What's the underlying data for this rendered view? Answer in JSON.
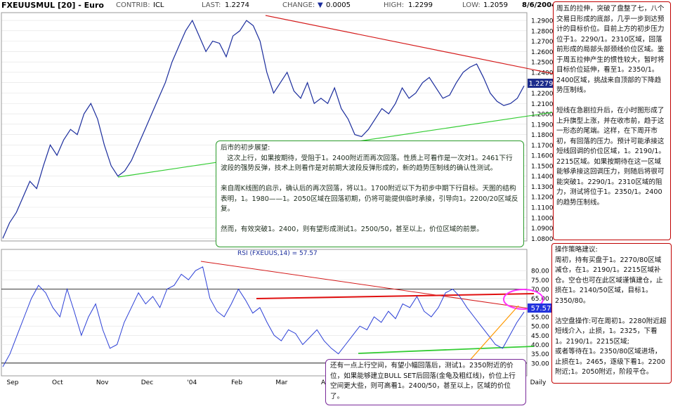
{
  "header": {
    "symbol": "FXEUUSMUL [20] - Euro",
    "contrib_label": "CONTRIB:",
    "contrib": "ICL",
    "last_label": "LAST:",
    "last": "1.2274",
    "change_label": "CHANGE:",
    "change_arrow": "▼",
    "change": "0.0005",
    "high_label": "HIGH:",
    "high": "1.2299",
    "low_label": "LOW:",
    "low": "1.2059",
    "date": "8/6/2004"
  },
  "colors": {
    "price_line": "#1a2c9c",
    "rsi_line": "#2b3fd6",
    "trend_red": "#d41a1a",
    "trend_green": "#33cc33",
    "grid": "#e2e2e2",
    "last_tag_bg": "#1c2c8c",
    "rsi_tag_bg": "#2233dd",
    "ellipse": "#ff33ff",
    "arrow_orange": "#ff9900"
  },
  "chart_data": [
    {
      "type": "line",
      "title": "FXEUUSMUL [20] - Euro",
      "y_ticks": [
        "1.2900",
        "1.2800",
        "1.2700",
        "1.2600",
        "1.2500",
        "1.2400",
        "1.2300",
        "1.2200",
        "1.2100",
        "1.2000",
        "1.1900",
        "1.1800",
        "1.1700",
        "1.1600",
        "1.1500",
        "1.1400",
        "1.1300",
        "1.1200",
        "1.1100",
        "1.1000",
        "1.0900",
        "1.0800"
      ],
      "ylim": [
        1.0775,
        1.2975
      ],
      "last_value_tag": "1.2279",
      "x_ticks": [
        "Sep",
        "Oct",
        "Nov",
        "Dec",
        "'04",
        "Feb",
        "Mar",
        "Apr",
        "May",
        "Jun",
        "Jul",
        "Aug",
        "Daily"
      ],
      "series": [
        {
          "values": [
            1.08,
            1.095,
            1.105,
            1.12,
            1.135,
            1.128,
            1.15,
            1.17,
            1.16,
            1.175,
            1.185,
            1.18,
            1.2,
            1.21,
            1.195,
            1.17,
            1.15,
            1.14,
            1.145,
            1.155,
            1.17,
            1.185,
            1.2,
            1.215,
            1.23,
            1.25,
            1.265,
            1.28,
            1.29,
            1.275,
            1.26,
            1.27,
            1.268,
            1.255,
            1.275,
            1.28,
            1.29,
            1.285,
            1.27,
            1.24,
            1.22,
            1.23,
            1.24,
            1.222,
            1.215,
            1.23,
            1.21,
            1.215,
            1.21,
            1.225,
            1.205,
            1.195,
            1.18,
            1.178,
            1.185,
            1.195,
            1.205,
            1.2,
            1.21,
            1.225,
            1.215,
            1.22,
            1.23,
            1.235,
            1.225,
            1.215,
            1.218,
            1.23,
            1.24,
            1.245,
            1.248,
            1.235,
            1.22,
            1.212,
            1.208,
            1.21,
            1.215,
            1.227
          ]
        }
      ],
      "trendlines": [
        "red resistance",
        "green support"
      ]
    },
    {
      "type": "line",
      "title": "RSI (FXEUUS,14) = 57.57",
      "y_ticks": [
        "80.00",
        "75.00",
        "70.00",
        "65.00",
        "60.00",
        "55.00",
        "50.00",
        "45.00",
        "40.00",
        "35.00",
        "30.00"
      ],
      "ylim": [
        25,
        85
      ],
      "last_value_tag": "57.57",
      "series": [
        {
          "name": "RSI (FXEUUS,14)",
          "values": [
            28,
            35,
            45,
            55,
            65,
            72,
            68,
            60,
            55,
            70,
            58,
            45,
            55,
            62,
            48,
            38,
            40,
            52,
            60,
            68,
            62,
            66,
            60,
            70,
            72,
            78,
            75,
            80,
            82,
            65,
            58,
            55,
            62,
            70,
            64,
            57,
            60,
            52,
            45,
            42,
            48,
            46,
            40,
            44,
            48,
            42,
            38,
            35,
            40,
            45,
            50,
            48,
            55,
            52,
            58,
            54,
            62,
            60,
            66,
            58,
            55,
            60,
            68,
            70,
            66,
            60,
            55,
            50,
            45,
            40,
            38,
            45,
            52,
            57.57
          ]
        }
      ],
      "horizontal_levels": [
        70,
        30
      ]
    }
  ],
  "notes": {
    "outlook": "后市的初步展望:\n   这次上行，如果按期待，受阻于1。2400附近而再次回落。性质上可看作是一次对1。2461下行波段的强势反弹，技术上则看作是对前期大波段反弹形成的，新的趋势压制线的确认性测试。\n\n来自周K线图的启示，确认后的再次回落，将以1。1700附近以下为初步中期下行目标。天图的结构表明，1。1980——1。2050区域在回落初期，仍将可能提供临时承接，引导向1。2200/20区域反复。\n\n然而，有效突破1。2400，则有望形成测试1。2500/50，甚至以上，价位区域的前景。",
    "right": "周五的拉伸，突破了盘整了七，八个交易日形成的底部，几乎一步到达预计的目标价位。目前上方的初步压力位于1。2290/1。2310区域，回落前形成的局部头部颈线价位区域。鉴于周五拉伸产生的惯性较大，暂时将目标价位延伸，看至1。2350/1。2400区域，挑战来自顶部的下降趋势压制线。\n\n短线在急剧拉升后，在小时图形成了上升旗型上涨，并在收市前，趋于这一形态的尾端。这样，在下周开市初，有回落的压力。预计可能承接这短线回调的价位区域，1。2190/1。2215区域。如果按期待在这一区域能够承接这回调压力，则随后将很可能突破1。2290/1。2310区域的阻力，测试将位于1。2350/1。2400的趋势压制线。",
    "strategy": "操作策略建议:\n周初，持有买盘于1。2270/80区域减仓，在1。2190/1。2215区域补仓。空仓也可在此区域谨慎建仓，止损在1。2140/50区域，目标1。2350/80。\n\n沽空盘操作:可在周初1。2280附近超短线介入，止损，1。2325，下看1。2190/1。2215区域;\n或者等待在1。2350/80区域进场，止损在1。2465，逐级下看1。2200附近;1。2050附近，阶段平仓。",
    "rsi": "还有一点上行空间，有望小幅回落后，测试1。2350附近的价位，如果能够建立BULL SET后回落(金龟及粗红线)，价位上行空间更大些，则可高看1。2400/50，甚至以上，区域的价位了。"
  }
}
